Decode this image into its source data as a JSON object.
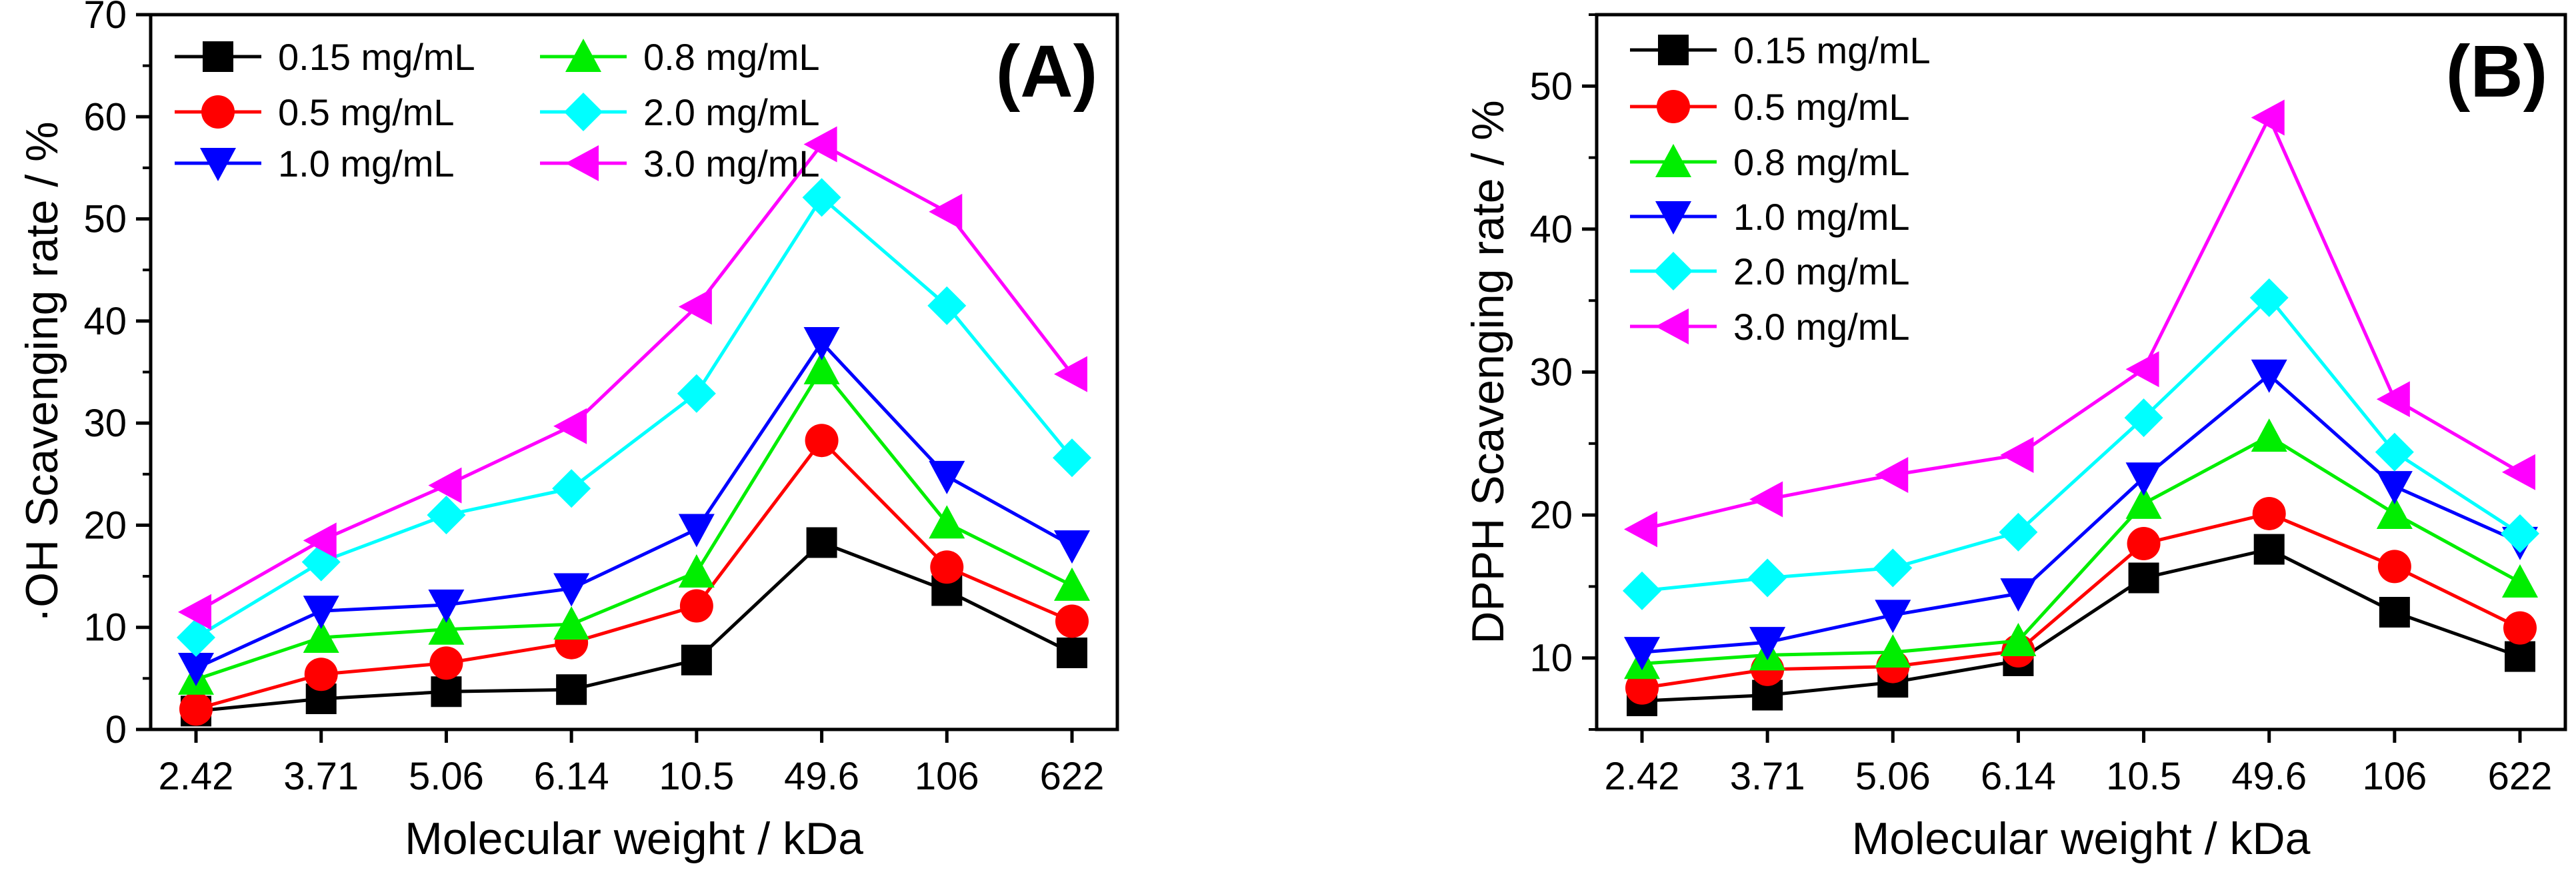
{
  "chart_data": [
    {
      "type": "line",
      "panel_label": "(A)",
      "title": "",
      "xlabel": "Molecular weight / kDa",
      "ylabel": "·OH Scavenging rate / %",
      "categories": [
        "2.42",
        "3.71",
        "5.06",
        "6.14",
        "10.5",
        "49.6",
        "106",
        "622"
      ],
      "ylim": [
        0,
        70
      ],
      "yticks": [
        0,
        10,
        20,
        30,
        40,
        50,
        60,
        70
      ],
      "grid": false,
      "legend_position": "top-left, two columns",
      "series": [
        {
          "name": "0.15 mg/mL",
          "color": "#000000",
          "marker": "square",
          "values": [
            1.8,
            3.0,
            3.7,
            3.9,
            6.8,
            18.3,
            13.6,
            7.5
          ]
        },
        {
          "name": "0.5 mg/mL",
          "color": "#ff0000",
          "marker": "circle",
          "values": [
            2.0,
            5.4,
            6.5,
            8.5,
            12.1,
            28.3,
            15.9,
            10.6
          ]
        },
        {
          "name": "0.8 mg/mL",
          "color": "#00ee00",
          "marker": "triangle-up",
          "values": [
            4.9,
            9.0,
            9.8,
            10.3,
            15.4,
            35.3,
            20.2,
            14.1
          ]
        },
        {
          "name": "1.0 mg/mL",
          "color": "#0000ff",
          "marker": "triangle-down",
          "values": [
            6.0,
            11.6,
            12.2,
            13.8,
            19.6,
            37.9,
            24.8,
            18.0
          ]
        },
        {
          "name": "2.0 mg/mL",
          "color": "#00ffff",
          "marker": "diamond",
          "values": [
            9.0,
            16.4,
            21.0,
            23.6,
            32.9,
            52.1,
            41.5,
            26.6
          ]
        },
        {
          "name": "3.0 mg/mL",
          "color": "#ff00ff",
          "marker": "triangle-left",
          "values": [
            11.5,
            18.5,
            23.9,
            29.7,
            41.4,
            57.3,
            50.7,
            34.8
          ]
        }
      ]
    },
    {
      "type": "line",
      "panel_label": "(B)",
      "title": "",
      "xlabel": "Molecular weight / kDa",
      "ylabel": "DPPH Scavenging rate / %",
      "categories": [
        "2.42",
        "3.71",
        "5.06",
        "6.14",
        "10.5",
        "49.6",
        "106",
        "622"
      ],
      "ylim": [
        5,
        55
      ],
      "yticks": [
        10,
        20,
        30,
        40,
        50
      ],
      "grid": false,
      "legend_position": "top-left, one column",
      "series": [
        {
          "name": "0.15 mg/mL",
          "color": "#000000",
          "marker": "square",
          "values": [
            7.0,
            7.4,
            8.3,
            9.8,
            15.6,
            17.6,
            13.2,
            10.1
          ]
        },
        {
          "name": "0.5 mg/mL",
          "color": "#ff0000",
          "marker": "circle",
          "values": [
            7.9,
            9.2,
            9.4,
            10.5,
            18.0,
            20.1,
            16.4,
            12.1
          ]
        },
        {
          "name": "0.8 mg/mL",
          "color": "#00ee00",
          "marker": "triangle-up",
          "values": [
            9.6,
            10.2,
            10.4,
            11.2,
            20.8,
            25.5,
            20.1,
            15.3
          ]
        },
        {
          "name": "1.0 mg/mL",
          "color": "#0000ff",
          "marker": "triangle-down",
          "values": [
            10.4,
            11.1,
            13.0,
            14.5,
            22.6,
            29.8,
            22.0,
            18.1
          ]
        },
        {
          "name": "2.0 mg/mL",
          "color": "#00ffff",
          "marker": "diamond",
          "values": [
            14.7,
            15.6,
            16.3,
            18.8,
            26.8,
            35.2,
            24.4,
            18.7
          ]
        },
        {
          "name": "3.0 mg/mL",
          "color": "#ff00ff",
          "marker": "triangle-left",
          "values": [
            19.0,
            21.1,
            22.8,
            24.2,
            30.2,
            47.8,
            28.1,
            23.0
          ]
        }
      ]
    }
  ]
}
